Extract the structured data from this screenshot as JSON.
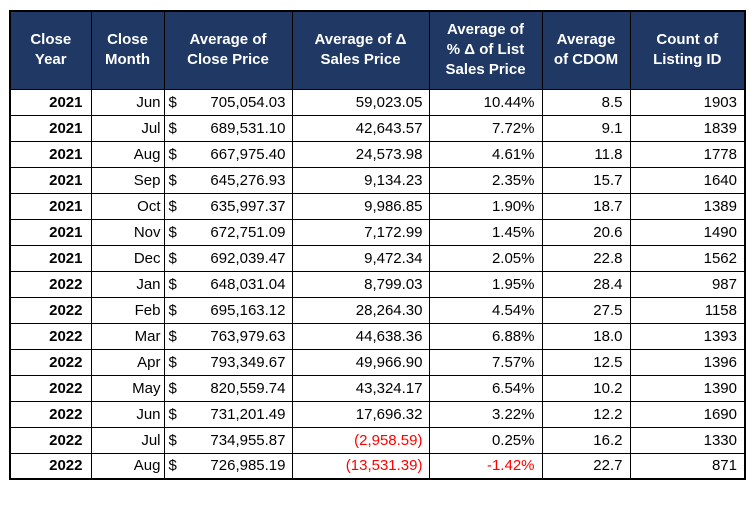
{
  "table": {
    "columns": [
      {
        "id": "close-year",
        "header_lines": [
          "Close",
          "Year"
        ]
      },
      {
        "id": "close-month",
        "header_lines": [
          "Close",
          "Month"
        ]
      },
      {
        "id": "avg-close-price",
        "header_lines": [
          "Average of",
          "Close Price"
        ]
      },
      {
        "id": "avg-delta-sales-price",
        "header_lines": [
          "Average of Δ",
          "Sales Price"
        ]
      },
      {
        "id": "avg-pct-delta-list-sales-price",
        "header_lines": [
          "Average of",
          "% Δ of List",
          "Sales Price"
        ]
      },
      {
        "id": "avg-cdom",
        "header_lines": [
          "Average",
          "of CDOM"
        ]
      },
      {
        "id": "count-listing-id",
        "header_lines": [
          "Count of",
          "Listing ID"
        ]
      }
    ],
    "rows": [
      [
        "2021",
        "Jun",
        "$705,054.03",
        "59,023.05",
        "10.44%",
        "8.5",
        "1903"
      ],
      [
        "2021",
        "Jul",
        "$689,531.10",
        "42,643.57",
        "7.72%",
        "9.1",
        "1839"
      ],
      [
        "2021",
        "Aug",
        "$667,975.40",
        "24,573.98",
        "4.61%",
        "11.8",
        "1778"
      ],
      [
        "2021",
        "Sep",
        "$645,276.93",
        "9,134.23",
        "2.35%",
        "15.7",
        "1640"
      ],
      [
        "2021",
        "Oct",
        "$635,997.37",
        "9,986.85",
        "1.90%",
        "18.7",
        "1389"
      ],
      [
        "2021",
        "Nov",
        "$672,751.09",
        "7,172.99",
        "1.45%",
        "20.6",
        "1490"
      ],
      [
        "2021",
        "Dec",
        "$692,039.47",
        "9,472.34",
        "2.05%",
        "22.8",
        "1562"
      ],
      [
        "2022",
        "Jan",
        "$648,031.04",
        "8,799.03",
        "1.95%",
        "28.4",
        "987"
      ],
      [
        "2022",
        "Feb",
        "$695,163.12",
        "28,264.30",
        "4.54%",
        "27.5",
        "1158"
      ],
      [
        "2022",
        "Mar",
        "$763,979.63",
        "44,638.36",
        "6.88%",
        "18.0",
        "1393"
      ],
      [
        "2022",
        "Apr",
        "$793,349.67",
        "49,966.90",
        "7.57%",
        "12.5",
        "1396"
      ],
      [
        "2022",
        "May",
        "$820,559.74",
        "43,324.17",
        "6.54%",
        "10.2",
        "1390"
      ],
      [
        "2022",
        "Jun",
        "$731,201.49",
        "17,696.32",
        "3.22%",
        "12.2",
        "1690"
      ],
      [
        "2022",
        "Jul",
        "$734,955.87",
        "(2,958.59)",
        "0.25%",
        "16.2",
        "1330"
      ],
      [
        "2022",
        "Aug",
        "$726,985.19",
        "(13,531.39)",
        "-1.42%",
        "22.7",
        "871"
      ]
    ],
    "colors": {
      "header_bg": "#1F3864",
      "header_text": "#FFFFFF",
      "negative": "#FF0000",
      "border": "#000000",
      "body_text": "#000000",
      "row_bg": "#FFFFFF"
    }
  }
}
